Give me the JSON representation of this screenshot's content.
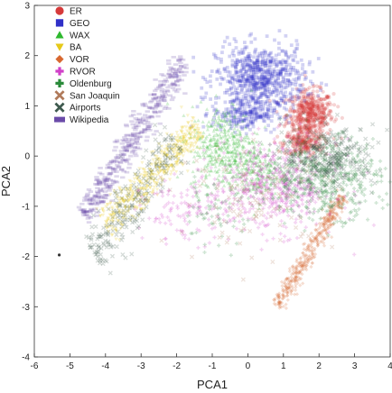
{
  "chart_data": {
    "type": "scatter",
    "title": "",
    "xlabel": "PCA1",
    "ylabel": "PCA2",
    "xlim": [
      -6,
      4
    ],
    "ylim": [
      -4,
      3
    ],
    "xticks": [
      -6,
      -5,
      -4,
      -3,
      -2,
      -1,
      0,
      1,
      2,
      3,
      4
    ],
    "yticks": [
      -4,
      -3,
      -2,
      -1,
      0,
      1,
      2,
      3
    ],
    "grid": false,
    "legend_position": "top-left",
    "series": [
      {
        "name": "ER",
        "marker": "circle",
        "color": "#d63a3a",
        "clusters": [
          {
            "x": [
              1.1,
              2.4
            ],
            "y": [
              0.35,
              1.3
            ],
            "count": 520
          },
          {
            "x": [
              1.0,
              2.1
            ],
            "y": [
              0.0,
              0.5
            ],
            "count": 200
          }
        ]
      },
      {
        "name": "GEO",
        "marker": "square",
        "color": "#3030c8",
        "clusters": [
          {
            "x": [
              -0.9,
              1.6
            ],
            "y": [
              0.9,
              2.2
            ],
            "count": 700
          },
          {
            "x": [
              -1.0,
              0.8
            ],
            "y": [
              0.5,
              1.2
            ],
            "count": 220
          }
        ]
      },
      {
        "name": "WAX",
        "marker": "triangle-up",
        "color": "#2eb82e",
        "clusters": [
          {
            "x": [
              -1.6,
              0.3
            ],
            "y": [
              -0.7,
              1.0
            ],
            "count": 420
          },
          {
            "x": [
              -0.5,
              1.0
            ],
            "y": [
              -0.9,
              0.2
            ],
            "count": 180
          }
        ]
      },
      {
        "name": "BA",
        "marker": "triangle-down",
        "color": "#e6c919",
        "clusters": [
          {
            "band": [
              [
                -4.0,
                -1.4
              ],
              [
                -1.4,
                0.6
              ]
            ],
            "width": 0.35,
            "count": 520
          }
        ]
      },
      {
        "name": "VOR",
        "marker": "diamond",
        "color": "#d86830",
        "clusters": [
          {
            "band": [
              [
                2.7,
                -0.8
              ],
              [
                0.8,
                -3.0
              ]
            ],
            "width": 0.2,
            "count": 420
          }
        ]
      },
      {
        "name": "RVOR",
        "marker": "plus",
        "color": "#d040c8",
        "clusters": [
          {
            "x": [
              -1.0,
              2.5
            ],
            "y": [
              -1.5,
              0.3
            ],
            "count": 520
          },
          {
            "x": [
              -3.0,
              -0.5
            ],
            "y": [
              -1.7,
              -0.5
            ],
            "count": 120
          }
        ]
      },
      {
        "name": "Oldenburg",
        "marker": "plus",
        "color": "#2a8a3a",
        "clusters": [
          {
            "x": [
              0.5,
              3.7
            ],
            "y": [
              -1.2,
              0.4
            ],
            "count": 560
          },
          {
            "x": [
              -2.0,
              0.0
            ],
            "y": [
              -1.8,
              -0.6
            ],
            "count": 60
          }
        ]
      },
      {
        "name": "San Joaquin",
        "marker": "x",
        "color": "#b07a5a",
        "clusters": [
          {
            "x": [
              -2.0,
              2.5
            ],
            "y": [
              -1.8,
              0.2
            ],
            "count": 120
          }
        ]
      },
      {
        "name": "Airports",
        "marker": "x",
        "color": "#3e5a4e",
        "clusters": [
          {
            "x": [
              1.0,
              3.6
            ],
            "y": [
              -0.6,
              0.6
            ],
            "count": 300
          },
          {
            "band": [
              [
                -4.3,
                -2.0
              ],
              [
                -2.0,
                0.3
              ]
            ],
            "width": 0.5,
            "count": 250
          }
        ]
      },
      {
        "name": "Wikipedia",
        "marker": "rect",
        "color": "#6a4aa8",
        "clusters": [
          {
            "band": [
              [
                -4.6,
                -1.2
              ],
              [
                -1.8,
                1.9
              ]
            ],
            "width": 0.3,
            "count": 420
          }
        ]
      }
    ],
    "outliers": [
      {
        "x": -5.3,
        "y": -1.97,
        "color": "#333333"
      }
    ]
  }
}
